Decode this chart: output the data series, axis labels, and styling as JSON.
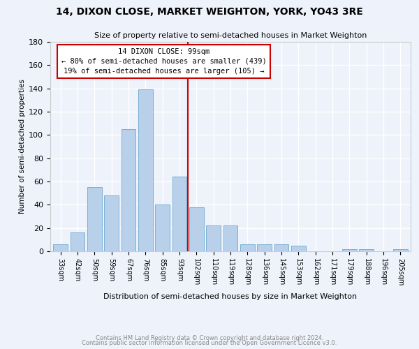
{
  "title": "14, DIXON CLOSE, MARKET WEIGHTON, YORK, YO43 3RE",
  "subtitle": "Size of property relative to semi-detached houses in Market Weighton",
  "xlabel": "Distribution of semi-detached houses by size in Market Weighton",
  "ylabel": "Number of semi-detached properties",
  "categories": [
    "33sqm",
    "42sqm",
    "50sqm",
    "59sqm",
    "67sqm",
    "76sqm",
    "85sqm",
    "93sqm",
    "102sqm",
    "110sqm",
    "119sqm",
    "128sqm",
    "136sqm",
    "145sqm",
    "153sqm",
    "162sqm",
    "171sqm",
    "179sqm",
    "188sqm",
    "196sqm",
    "205sqm"
  ],
  "values": [
    6,
    16,
    55,
    48,
    105,
    139,
    40,
    64,
    38,
    22,
    22,
    6,
    6,
    6,
    5,
    0,
    0,
    2,
    2,
    0,
    2
  ],
  "bar_color": "#b8d0ea",
  "bar_edge_color": "#7aafd4",
  "vline_index": 8,
  "vline_color": "#cc0000",
  "annotation_line1": "14 DIXON CLOSE: 99sqm",
  "annotation_line2": "← 80% of semi-detached houses are smaller (439)",
  "annotation_line3": "19% of semi-detached houses are larger (105) →",
  "ylim": [
    0,
    180
  ],
  "yticks": [
    0,
    20,
    40,
    60,
    80,
    100,
    120,
    140,
    160,
    180
  ],
  "footer1": "Contains HM Land Registry data © Crown copyright and database right 2024.",
  "footer2": "Contains public sector information licensed under the Open Government Licence v3.0.",
  "background_color": "#eef2fb",
  "grid_color": "#ffffff"
}
